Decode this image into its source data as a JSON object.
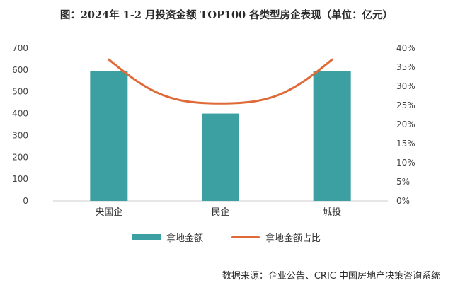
{
  "title": "图：2024年 1-2 月投资金额 TOP100 各类型房企表现（单位：亿元）",
  "source": "数据来源：企业公告、CRIC 中国房地产决策咨询系统",
  "colors": {
    "bar": "#3c9fa2",
    "line": "#e06a37"
  },
  "chart_data": {
    "type": "bar",
    "categories": [
      "央国企",
      "民企",
      "城投"
    ],
    "series": [
      {
        "name": "拿地金额",
        "type": "bar",
        "axis": "left",
        "values": [
          595,
          400,
          595
        ]
      },
      {
        "name": "拿地金额占比",
        "type": "line",
        "axis": "right",
        "values": [
          0.37,
          0.255,
          0.37
        ]
      }
    ],
    "ylim": [
      0,
      700
    ],
    "y_ticks": [
      "0",
      "100",
      "200",
      "300",
      "400",
      "500",
      "600",
      "700"
    ],
    "y2lim": [
      0,
      0.4
    ],
    "y2_ticks": [
      "0%",
      "5%",
      "10%",
      "15%",
      "20%",
      "25%",
      "30%",
      "35%",
      "40%"
    ],
    "legend_position": "bottom",
    "grid": false
  }
}
